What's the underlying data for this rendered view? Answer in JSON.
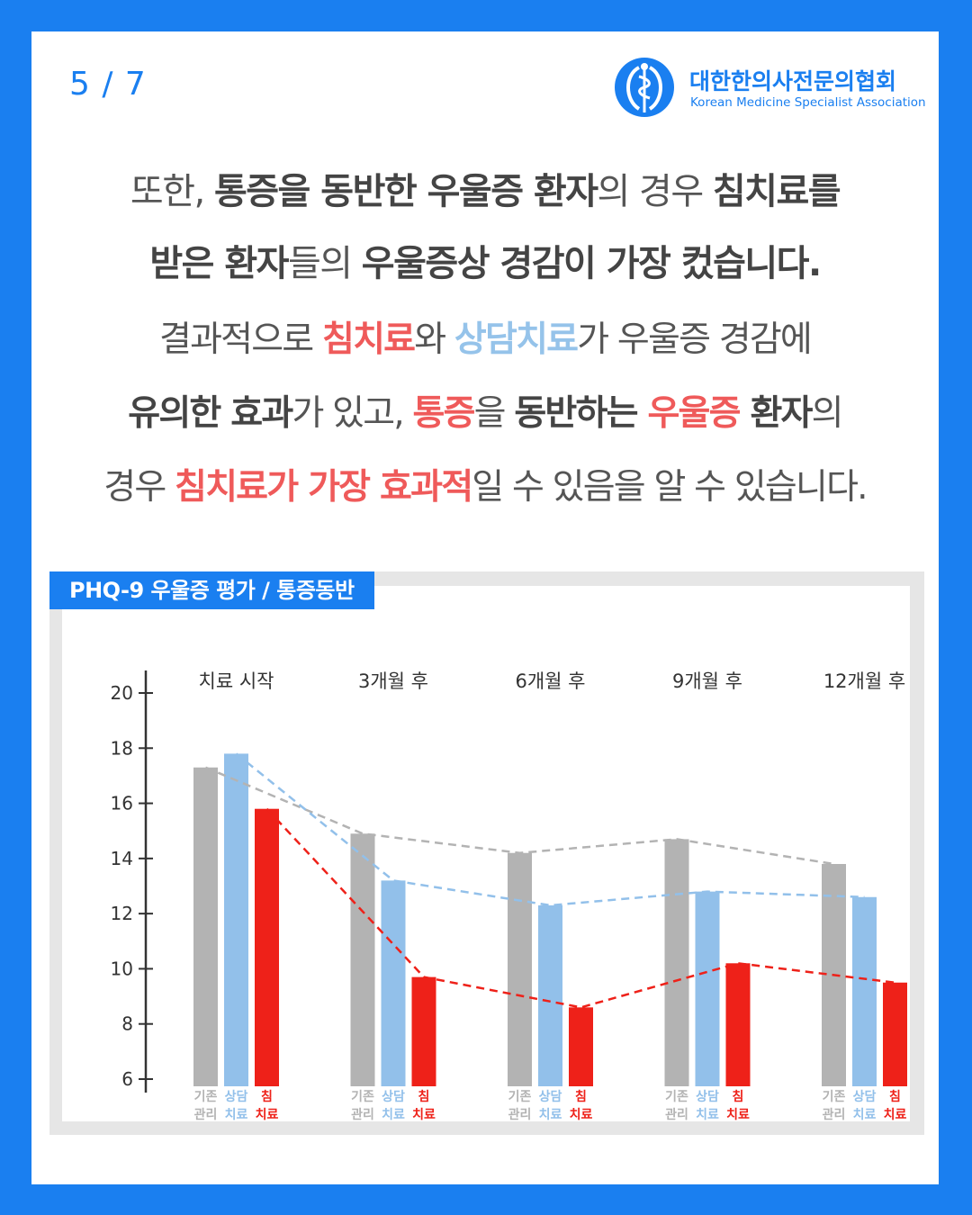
{
  "page_counter": "5 / 7",
  "logo": {
    "name": "대한한의사전문의협회",
    "sub": "Korean Medicine Specialist Association"
  },
  "paragraph1": {
    "line1": [
      "또한, ",
      "통증을 동반한 우울증 환자",
      "의 경우 ",
      "침치료를"
    ],
    "line2": [
      "받은 환자",
      "들의 ",
      "우울증상 경감이 가장 컸습니다."
    ]
  },
  "paragraph2": {
    "line1": [
      "결과적으로 ",
      "침치료",
      "와 ",
      "상담치료",
      "가 우울증 경감에"
    ],
    "line2": [
      "유의한 효과",
      "가 있고, ",
      "통증",
      "을 ",
      "동반하는 ",
      "우울증",
      " 환자",
      "의"
    ],
    "line3": [
      "경우 ",
      "침치료가 가장 효과적",
      "일 수 있음을 알 수 있습니다."
    ]
  },
  "chart_title": "PHQ-9 우울증 평가 / 통증동반",
  "colors": {
    "brand_blue": "#1a7ff0",
    "standard_care": "#b3b3b3",
    "counseling": "#92c0ea",
    "acupuncture": "#ee2119",
    "highlight_red": "#ef5a5a"
  },
  "chart_data": {
    "type": "bar",
    "title": "PHQ-9 우울증 평가 / 통증동반",
    "categories": [
      "치료 시작",
      "3개월 후",
      "6개월 후",
      "9개월 후",
      "12개월 후"
    ],
    "series": [
      {
        "name": "기존 관리",
        "label_lines": [
          "기존",
          "관리"
        ],
        "values": [
          17.3,
          14.9,
          14.2,
          14.7,
          13.8
        ]
      },
      {
        "name": "상담 치료",
        "label_lines": [
          "상담",
          "치료"
        ],
        "values": [
          17.8,
          13.2,
          12.3,
          12.8,
          12.6
        ]
      },
      {
        "name": "침 치료",
        "label_lines": [
          "침",
          "치료"
        ],
        "values": [
          15.8,
          9.7,
          8.6,
          10.2,
          9.5
        ]
      }
    ],
    "trend_lines": "dashed",
    "ylim": [
      6,
      20
    ],
    "yticks": [
      6,
      8,
      10,
      12,
      14,
      16,
      18,
      20
    ],
    "xlabel": "",
    "ylabel": "",
    "grid": false,
    "legend": "none"
  }
}
